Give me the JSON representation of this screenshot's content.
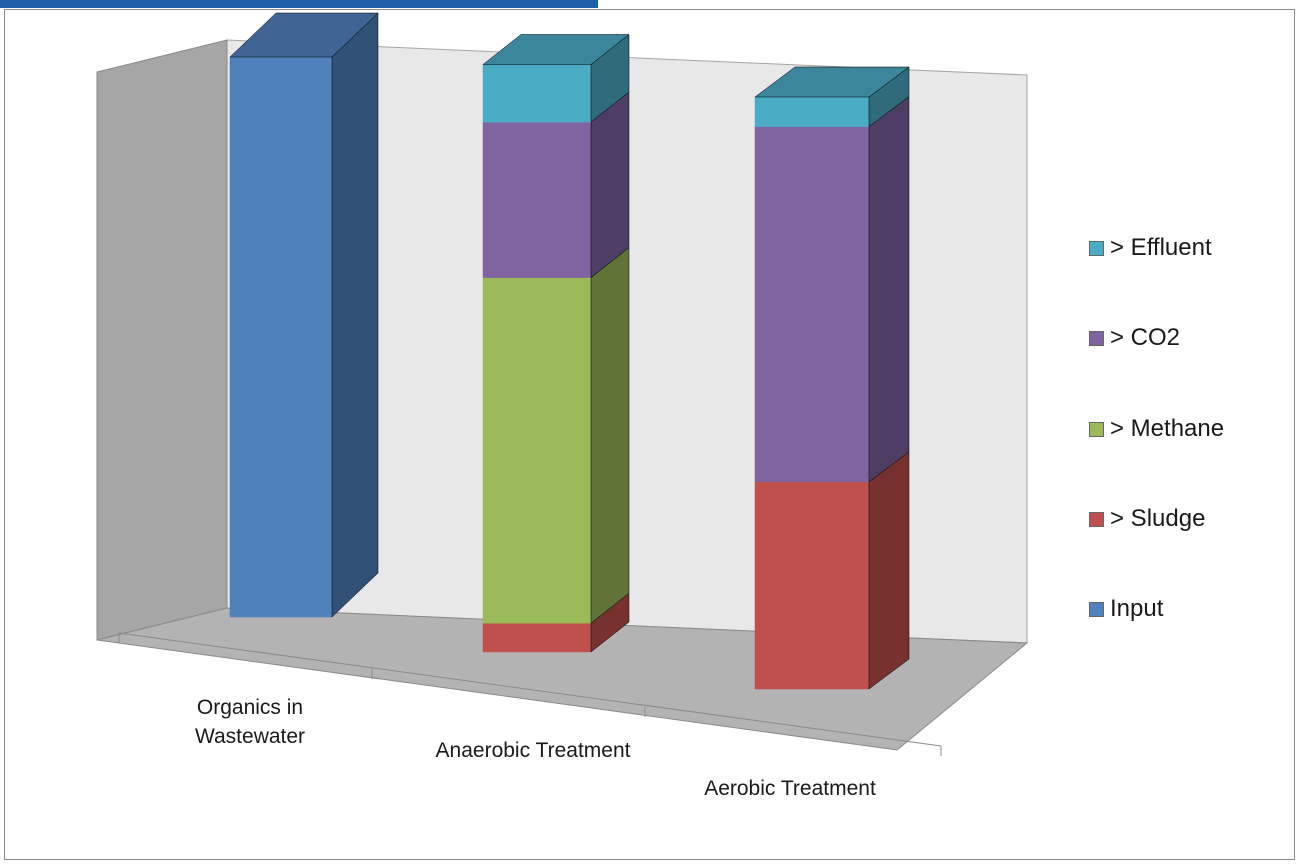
{
  "chart_data": {
    "type": "bar",
    "stacked": true,
    "three_d": true,
    "categories": [
      "Organics in Wastewater",
      "Anaerobic Treatment",
      "Aerobic Treatment"
    ],
    "category_lines": [
      [
        "Organics in",
        "Wastewater"
      ],
      [
        "Anaerobic Treatment"
      ],
      [
        "Aerobic Treatment"
      ]
    ],
    "series": [
      {
        "name": "Input",
        "color": "#4f81bd",
        "values": [
          100,
          0,
          0
        ]
      },
      {
        "name": "> Sludge",
        "color": "#c0504d",
        "values": [
          0,
          5,
          35
        ]
      },
      {
        "name": "> Methane",
        "color": "#9bbb59",
        "values": [
          0,
          60,
          0
        ]
      },
      {
        "name": "> CO2",
        "color": "#8064a2",
        "values": [
          0,
          27,
          60
        ]
      },
      {
        "name": "> Effluent",
        "color": "#4bacc6",
        "values": [
          0,
          10,
          5
        ]
      }
    ],
    "legend_order": [
      "> Effluent",
      "> CO2",
      "> Methane",
      "> Sludge",
      "Input"
    ],
    "legend_position": "right",
    "grid": false,
    "ylim": [
      0,
      100
    ]
  }
}
